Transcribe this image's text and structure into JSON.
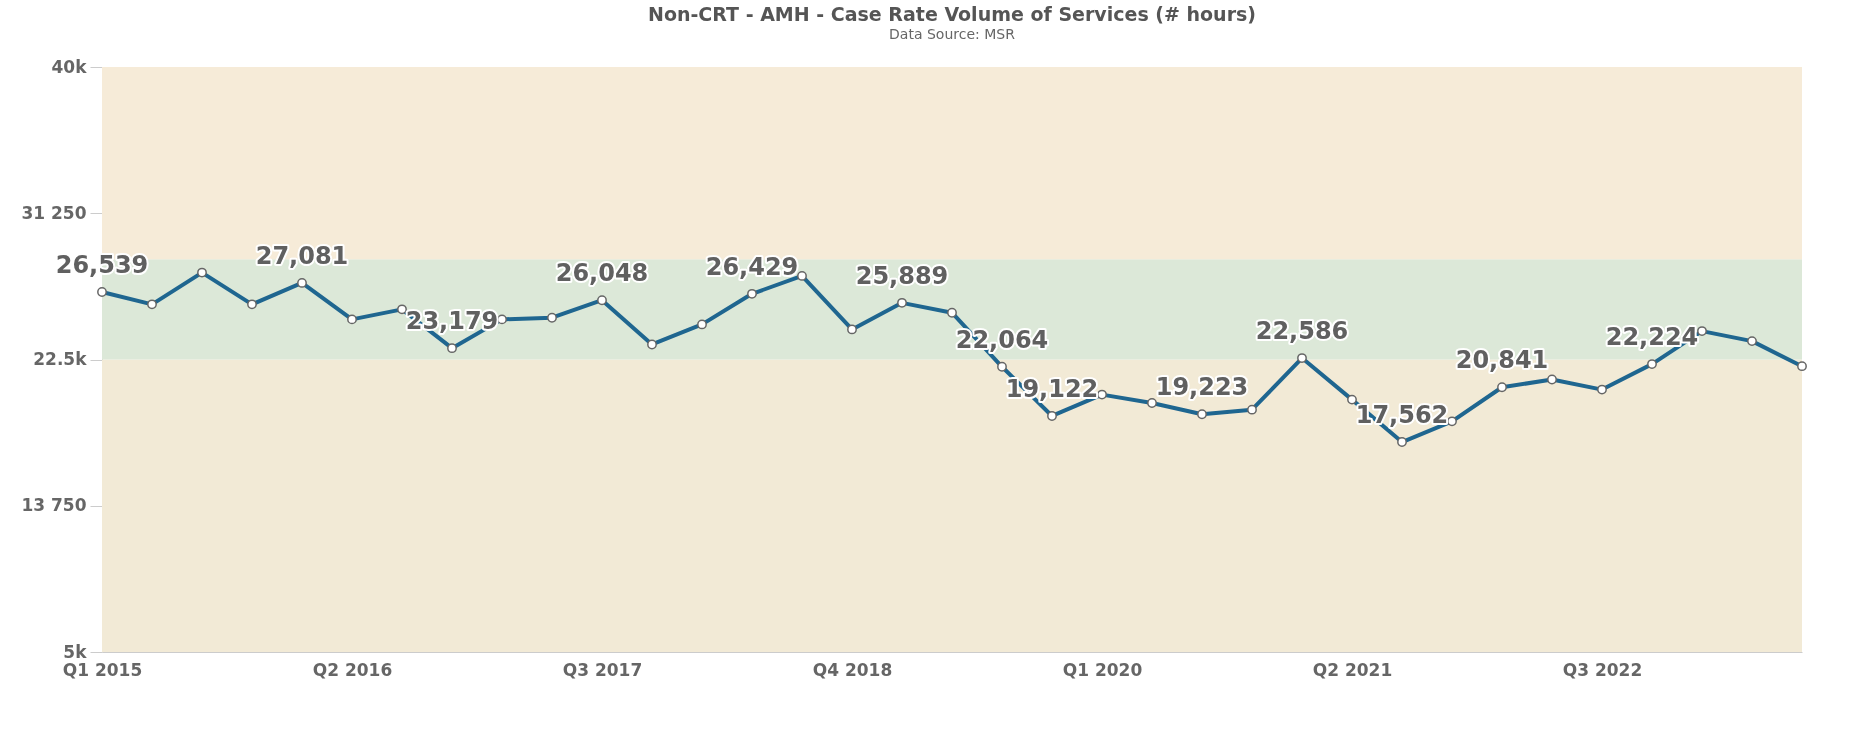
{
  "chart_data": {
    "type": "line",
    "title": "Non-CRT - AMH - Case Rate Volume of Services (# hours)",
    "subtitle": "Data Source: MSR",
    "categories": [
      "Q1 2015",
      null,
      null,
      null,
      null,
      "Q2 2016",
      null,
      null,
      null,
      null,
      "Q3 2017",
      null,
      null,
      null,
      null,
      "Q4 2018",
      null,
      null,
      null,
      null,
      "Q1 2020",
      null,
      null,
      null,
      null,
      "Q2 2021",
      null,
      null,
      null,
      null,
      "Q3 2022",
      null,
      null,
      null,
      null
    ],
    "series": [
      {
        "color": "#1f6690",
        "values": [
          26539,
          25800,
          27700,
          25800,
          27081,
          24900,
          25500,
          23179,
          24900,
          25000,
          26048,
          23400,
          24600,
          26429,
          27500,
          24300,
          25889,
          25300,
          22064,
          19122,
          20400,
          19900,
          19223,
          19500,
          22586,
          20100,
          17562,
          18800,
          20841,
          21300,
          20700,
          22224,
          24200,
          23600,
          22100
        ],
        "value_labels": [
          "26,539",
          null,
          null,
          null,
          "27,081",
          null,
          null,
          "23,179",
          null,
          null,
          "26,048",
          null,
          null,
          "26,429",
          null,
          null,
          "25,889",
          null,
          "22,064",
          "19,122",
          null,
          null,
          "19,223",
          null,
          "22,586",
          null,
          "17,562",
          null,
          "20,841",
          null,
          null,
          "22,224",
          null,
          null,
          null
        ]
      }
    ],
    "ylim": [
      5000,
      40000
    ],
    "yticks": [
      {
        "value": 5000,
        "label": "5k"
      },
      {
        "value": 13750,
        "label": "13 750"
      },
      {
        "value": 22500,
        "label": "22.5k"
      },
      {
        "value": 31250,
        "label": "31 250"
      },
      {
        "value": 40000,
        "label": "40k"
      }
    ],
    "bands": [
      {
        "axis": "y",
        "from": 5000,
        "to": 22500,
        "color": "#f2ead6"
      },
      {
        "axis": "y",
        "from": 22500,
        "to": 28500,
        "color": "#dce8d8"
      },
      {
        "axis": "y",
        "from": 28500,
        "to": 40000,
        "color": "#f6ebd8"
      }
    ],
    "grid": false,
    "marker": "circle",
    "line_style": "solid"
  }
}
